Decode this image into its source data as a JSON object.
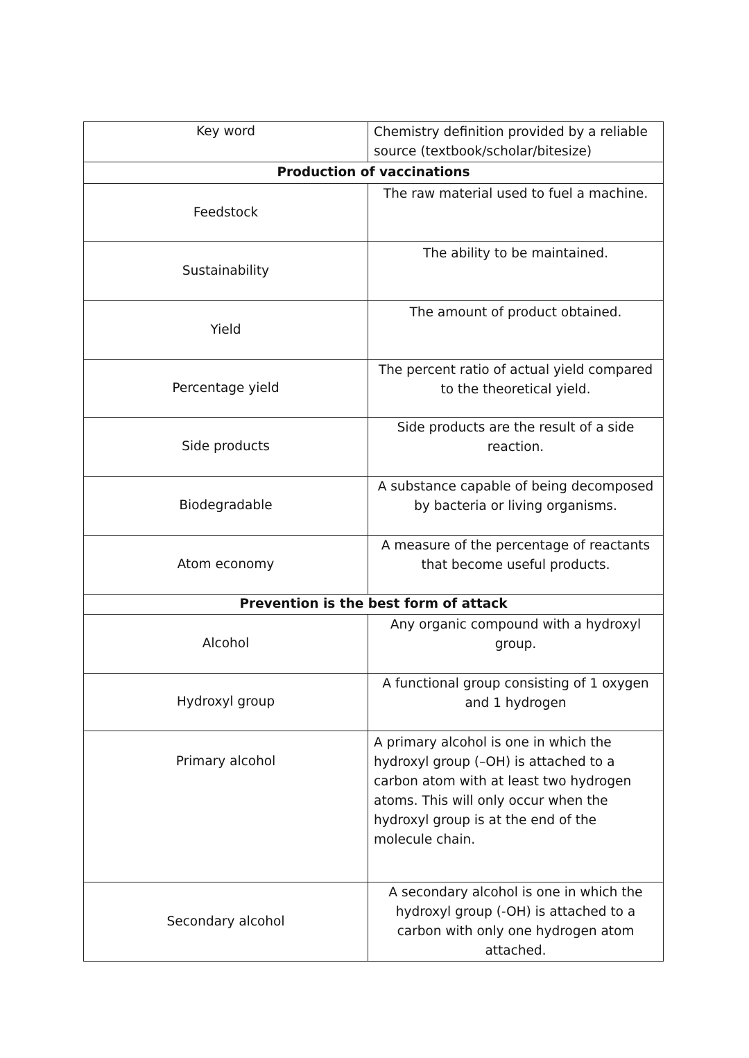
{
  "header": {
    "keyword": "Key word",
    "definition": "Chemistry definition provided by a reliable source (textbook/scholar/bitesize)"
  },
  "sections": [
    {
      "title": "Production of vaccinations",
      "rows": [
        {
          "term": "Feedstock",
          "definition": "The raw material used to fuel a machine."
        },
        {
          "term": "Sustainability",
          "definition": "The ability to be maintained."
        },
        {
          "term": "Yield",
          "definition": "The amount of product obtained."
        },
        {
          "term": "Percentage yield",
          "definition": "The percent ratio of actual yield compared to the theoretical yield."
        },
        {
          "term": "Side products",
          "definition": "Side products are the result of a side reaction."
        },
        {
          "term": "Biodegradable",
          "definition": "A substance capable of being decomposed by bacteria or living organisms."
        },
        {
          "term": "Atom economy",
          "definition": "A measure of the percentage of reactants that become useful products."
        }
      ]
    },
    {
      "title": "Prevention is the best form of attack",
      "rows": [
        {
          "term": "Alcohol",
          "definition": "Any organic compound with a hydroxyl group."
        },
        {
          "term": "Hydroxyl group",
          "definition": "A functional group consisting of 1 oxygen and 1 hydrogen"
        },
        {
          "term": "Primary alcohol",
          "definition": "A primary alcohol is one in which the hydroxyl group (–OH) is attached to a carbon atom with at least two hydrogen atoms. This will only occur when the hydroxyl group is at the end of the molecule chain."
        },
        {
          "term": "Secondary alcohol",
          "definition": "A secondary alcohol is one in which the hydroxyl group (-OH) is attached to a carbon with only one hydrogen atom attached."
        }
      ]
    }
  ]
}
